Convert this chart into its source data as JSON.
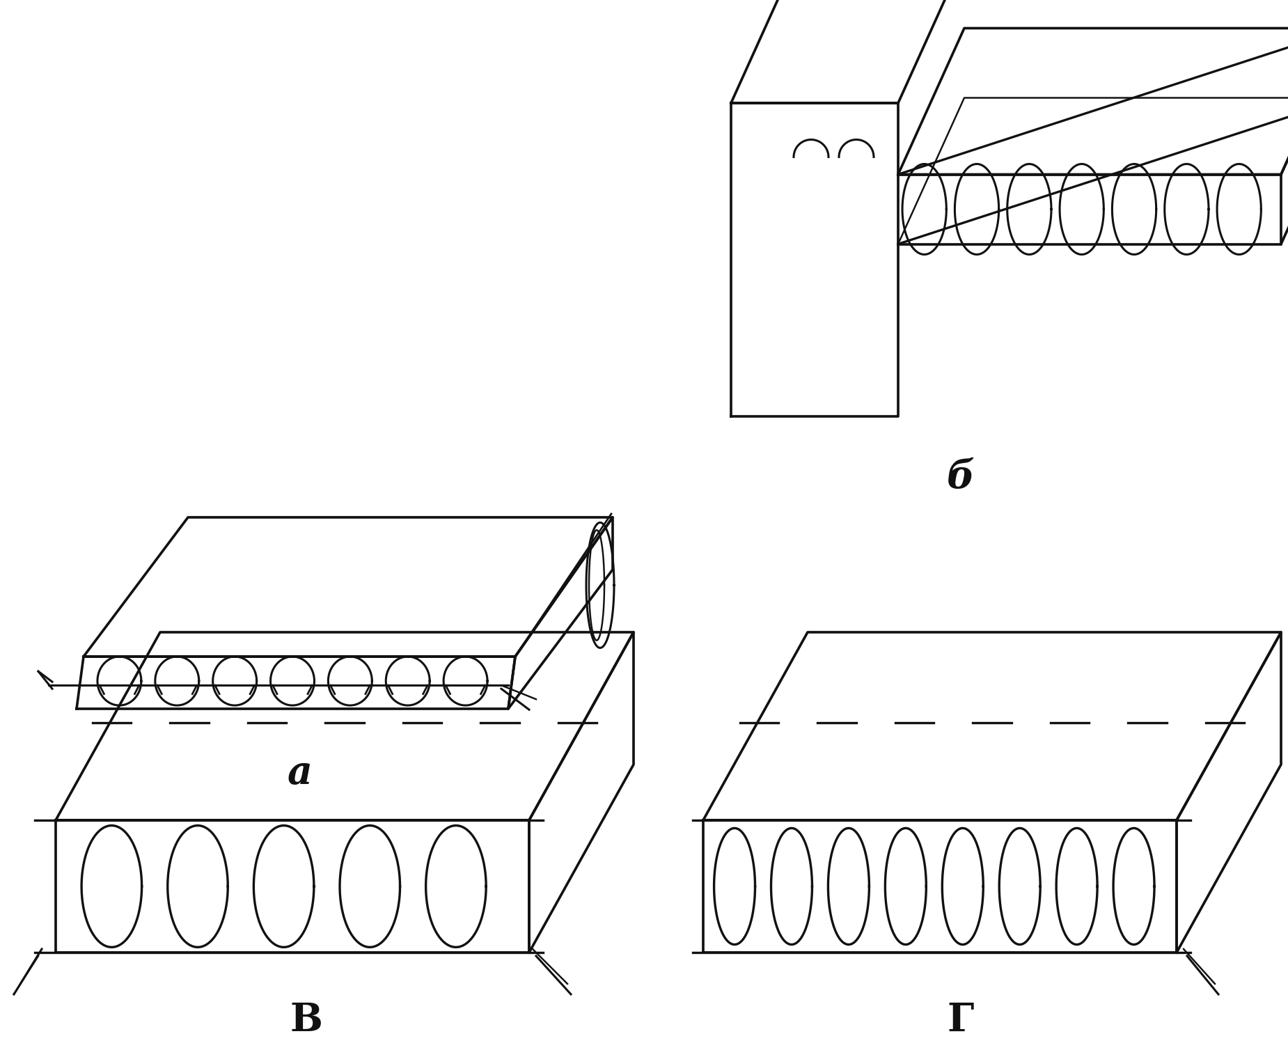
{
  "bg_color": "#ffffff",
  "line_color": "#111111",
  "lw": 2.2,
  "label_a": "a",
  "label_b": "б",
  "label_v": "В",
  "label_g": "Г",
  "fig_width": 18.5,
  "fig_height": 14.98
}
